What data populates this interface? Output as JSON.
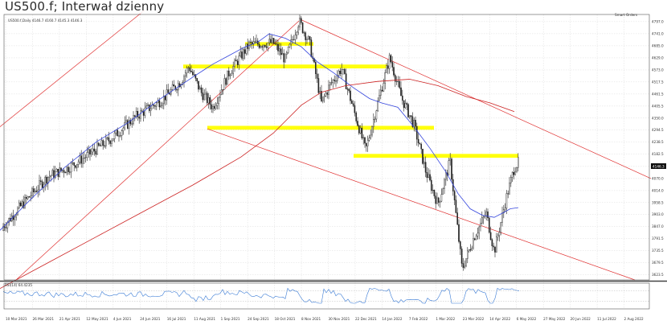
{
  "title": "US500.f; Interwał dzienny",
  "chart_data": {
    "type": "candlestick",
    "symbol_header": "US500.f,Daily 4146.7 4160.7 4145.3 4146.3",
    "smart_orders_label": "Smart Orders",
    "indicator_label": "RSI(14) 64.4235",
    "last_price_label": "4146.3",
    "price_axis": {
      "min": 3600,
      "max": 4830,
      "ticks": [
        4797.0,
        4741.0,
        4685.0,
        4629.0,
        4573.0,
        4517.5,
        4461.5,
        4405.5,
        4350.0,
        4294.5,
        4238.5,
        4182.5,
        4126.0,
        4070.0,
        4014.0,
        3958.5,
        3903.0,
        3847.0,
        3791.5,
        3735.5,
        3679.5,
        3623.5
      ]
    },
    "x_ticks": [
      "10 Mar 2021",
      "26 Mar 2021",
      "21 Apr 2021",
      "12 May 2021",
      "4 Jun 2021",
      "24 Jun 2021",
      "16 Jul 2021",
      "11 Aug 2021",
      "1 Sep 2021",
      "24 Sep 2021",
      "18 Oct 2021",
      "8 Nov 2021",
      "30 Nov 2021",
      "22 Dec 2021",
      "14 Jan 2022",
      "7 Feb 2022",
      "1 Mar 2022",
      "23 Mar 2022",
      "14 Apr 2022",
      "6 May 2022",
      "27 May 2022",
      "20 Jun 2022",
      "11 Jul 2022",
      "2 Aug 2022"
    ],
    "rsi_levels": [
      70,
      30
    ],
    "moving_averages": [
      {
        "color": "#3344dd",
        "points": [
          [
            0,
            3830
          ],
          [
            40,
            3980
          ],
          [
            80,
            4120
          ],
          [
            120,
            4240
          ],
          [
            160,
            4330
          ],
          [
            200,
            4440
          ],
          [
            240,
            4540
          ],
          [
            265,
            4600
          ],
          [
            285,
            4640
          ],
          [
            305,
            4680
          ],
          [
            320,
            4700
          ],
          [
            335,
            4740
          ],
          [
            355,
            4720
          ],
          [
            375,
            4680
          ],
          [
            395,
            4610
          ],
          [
            415,
            4560
          ],
          [
            440,
            4490
          ],
          [
            460,
            4440
          ],
          [
            475,
            4420
          ],
          [
            495,
            4400
          ],
          [
            515,
            4310
          ],
          [
            535,
            4210
          ],
          [
            555,
            4100
          ],
          [
            570,
            4000
          ],
          [
            585,
            3930
          ],
          [
            600,
            3900
          ],
          [
            615,
            3890
          ],
          [
            628,
            3915
          ],
          [
            635,
            3930
          ],
          [
            645,
            3935
          ]
        ]
      },
      {
        "color": "#cc2222",
        "points": [
          [
            0,
            3560
          ],
          [
            60,
            3680
          ],
          [
            120,
            3800
          ],
          [
            180,
            3920
          ],
          [
            240,
            4040
          ],
          [
            300,
            4170
          ],
          [
            340,
            4280
          ],
          [
            375,
            4410
          ],
          [
            400,
            4470
          ],
          [
            430,
            4500
          ],
          [
            470,
            4520
          ],
          [
            510,
            4530
          ],
          [
            545,
            4500
          ],
          [
            580,
            4450
          ],
          [
            610,
            4420
          ],
          [
            640,
            4380
          ]
        ]
      }
    ],
    "trendlines": [
      {
        "color": "#e03030",
        "from": [
          -10,
          4280
        ],
        "to": [
          180,
          4850
        ]
      },
      {
        "color": "#e03030",
        "from": [
          20,
          3600
        ],
        "to": [
          372,
          4800
        ]
      },
      {
        "color": "#e03030",
        "from": [
          372,
          4810
        ],
        "to": [
          810,
          4070
        ]
      },
      {
        "color": "#e03030",
        "from": [
          258,
          4300
        ],
        "to": [
          790,
          3600
        ]
      }
    ],
    "support_resistance_zones": [
      {
        "color": "#ffff00",
        "x_from": 305,
        "x_to": 390,
        "low": 4685,
        "high": 4702
      },
      {
        "color": "#ffff00",
        "x_from": 228,
        "x_to": 482,
        "low": 4580,
        "high": 4598
      },
      {
        "color": "#ffff00",
        "x_from": 258,
        "x_to": 540,
        "low": 4296,
        "high": 4314
      },
      {
        "color": "#ffff00",
        "x_from": 440,
        "x_to": 645,
        "low": 4166,
        "high": 4184
      }
    ]
  }
}
